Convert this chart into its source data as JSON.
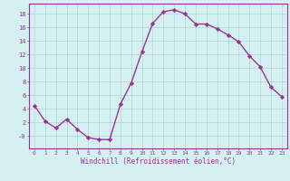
{
  "x": [
    0,
    1,
    2,
    3,
    4,
    5,
    6,
    7,
    8,
    9,
    10,
    11,
    12,
    13,
    14,
    15,
    16,
    17,
    18,
    19,
    20,
    21,
    22,
    23
  ],
  "y": [
    4.5,
    2.2,
    1.2,
    2.5,
    1.0,
    -0.2,
    -0.5,
    -0.5,
    4.7,
    7.8,
    12.4,
    16.6,
    18.3,
    18.6,
    18.0,
    16.5,
    16.5,
    15.8,
    14.9,
    13.9,
    11.8,
    10.2,
    7.2,
    5.8
  ],
  "line_color": "#993399",
  "marker": "D",
  "markersize": 2.2,
  "linewidth": 1.0,
  "background_color": "#d4f0f0",
  "grid_color": "#b0d4d4",
  "xlabel": "Windchill (Refroidissement éolien,°C)",
  "xlabel_color": "#993399",
  "tick_color": "#993399",
  "axis_color": "#993399",
  "xlim": [
    -0.5,
    23.5
  ],
  "ylim": [
    -1.8,
    19.5
  ],
  "yticks": [
    0,
    2,
    4,
    6,
    8,
    10,
    12,
    14,
    16,
    18
  ],
  "xticks": [
    0,
    1,
    2,
    3,
    4,
    5,
    6,
    7,
    8,
    9,
    10,
    11,
    12,
    13,
    14,
    15,
    16,
    17,
    18,
    19,
    20,
    21,
    22,
    23
  ],
  "fig_bg": "#d4f0f0",
  "fig_width": 3.2,
  "fig_height": 2.0,
  "dpi": 100
}
